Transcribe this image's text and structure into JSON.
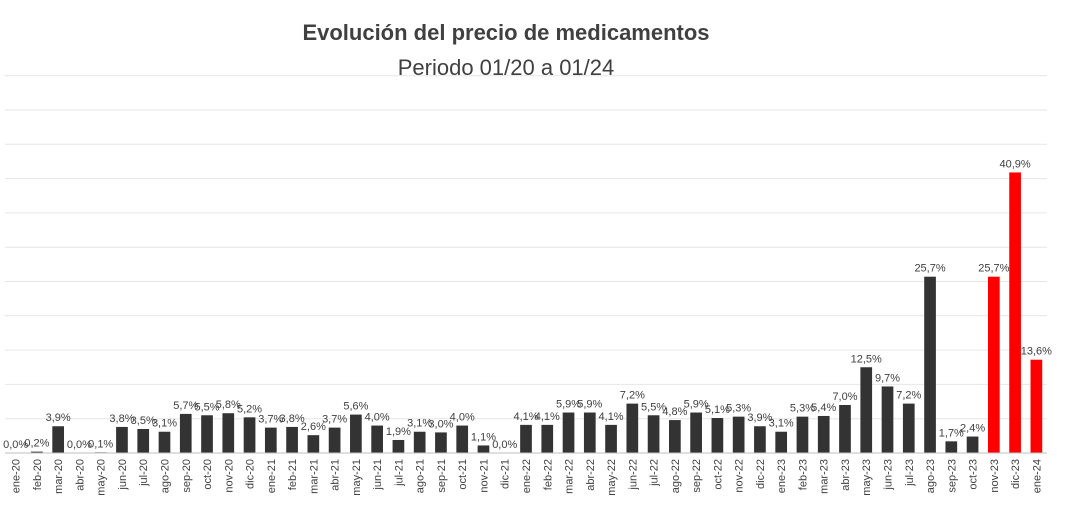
{
  "chart_data": {
    "type": "bar",
    "title": "Evolución del precio de medicamentos",
    "subtitle": "Periodo 01/20 a 01/24",
    "xlabel": "",
    "ylabel": "",
    "ylim": [
      0,
      50
    ],
    "grid": true,
    "categories": [
      "ene-20",
      "feb-20",
      "mar-20",
      "abr-20",
      "may-20",
      "jun-20",
      "jul-20",
      "ago-20",
      "sep-20",
      "oct-20",
      "nov-20",
      "dic-20",
      "ene-21",
      "feb-21",
      "mar-21",
      "abr-21",
      "may-21",
      "jun-21",
      "jul-21",
      "ago-21",
      "sep-21",
      "oct-21",
      "nov-21",
      "dic-21",
      "ene-22",
      "feb-22",
      "mar-22",
      "abr-22",
      "may-22",
      "jun-22",
      "jul-22",
      "ago-22",
      "sep-22",
      "oct-22",
      "nov-22",
      "dic-22",
      "ene-23",
      "feb-23",
      "mar-23",
      "abr-23",
      "may-23",
      "jun-23",
      "jul-23",
      "ago-23",
      "sep-23",
      "oct-23",
      "nov-23",
      "dic-23",
      "ene-24"
    ],
    "values": [
      0.0,
      0.2,
      3.9,
      0.0,
      0.1,
      3.8,
      3.5,
      3.1,
      5.7,
      5.5,
      5.8,
      5.2,
      3.7,
      3.8,
      2.6,
      3.7,
      5.6,
      4.0,
      1.9,
      3.1,
      3.0,
      4.0,
      1.1,
      0.0,
      4.1,
      4.1,
      5.9,
      5.9,
      4.1,
      7.2,
      5.5,
      4.8,
      5.9,
      5.1,
      5.3,
      3.9,
      3.1,
      5.3,
      5.4,
      7.0,
      12.5,
      9.7,
      7.2,
      25.7,
      1.7,
      2.4,
      25.7,
      40.9,
      13.6
    ],
    "labels": [
      "0,0%",
      "0,2%",
      "3,9%",
      "0,0%",
      "0,1%",
      "3,8%",
      "3,5%",
      "3,1%",
      "5,7%",
      "5,5%",
      "5,8%",
      "5,2%",
      "3,7%",
      "3,8%",
      "2,6%",
      "3,7%",
      "5,6%",
      "4,0%",
      "1,9%",
      "3,1%",
      "3,0%",
      "4,0%",
      "1,1%",
      "0,0%",
      "4,1%",
      "4,1%",
      "5,9%",
      "5,9%",
      "4,1%",
      "7,2%",
      "5,5%",
      "4,8%",
      "5,9%",
      "5,1%",
      "5,3%",
      "3,9%",
      "3,1%",
      "5,3%",
      "5,4%",
      "7,0%",
      "12,5%",
      "9,7%",
      "7,2%",
      "25,7%",
      "1,7%",
      "2,4%",
      "25,7%",
      "40,9%",
      "13,6%"
    ],
    "colors": {
      "default": "#333333",
      "highlight": "#ff0000",
      "grid": "#e6e6e6",
      "axis": "#bfbfbf",
      "text": "#404040"
    },
    "highlight_indices": [
      46,
      47,
      48
    ]
  }
}
